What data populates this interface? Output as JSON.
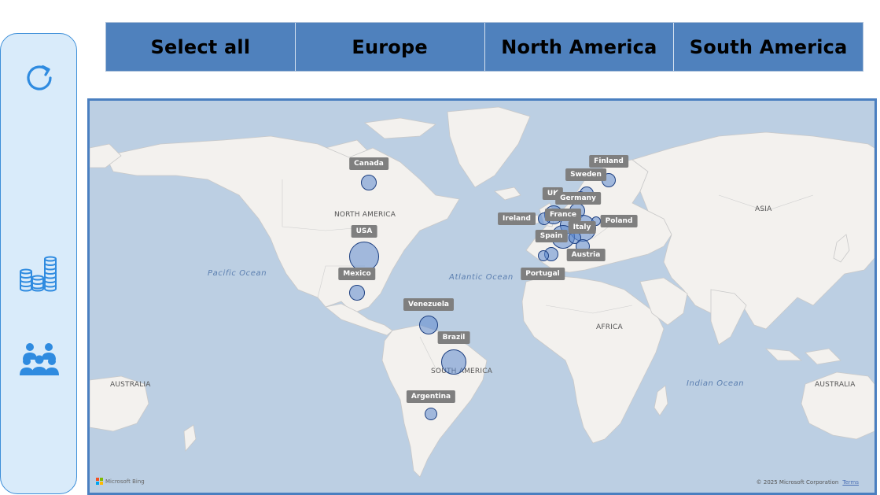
{
  "sidebar": {
    "icons": [
      {
        "name": "refresh-icon"
      },
      {
        "name": "coins-stack-icon"
      },
      {
        "name": "people-group-icon"
      }
    ],
    "accent": "#3d8fd9"
  },
  "slicer": {
    "buttons": [
      "Select all",
      "Europe",
      "North America",
      "South America"
    ],
    "color": "#4f81bd"
  },
  "map": {
    "regions": [
      "NORTH AMERICA",
      "SOUTH AMERICA",
      "AFRICA",
      "ASIA",
      "AUSTRALIA",
      "AUSTRALIA"
    ],
    "oceans": [
      "Pacific Ocean",
      "Atlantic Ocean",
      "Indian Ocean"
    ],
    "countries": [
      "Canada",
      "USA",
      "Mexico",
      "Venezuela",
      "Brazil",
      "Argentina",
      "Finland",
      "Sweden",
      "UK",
      "Germany",
      "Ireland",
      "France",
      "Poland",
      "Italy",
      "Spain",
      "Austria",
      "Portugal"
    ],
    "attribution": "Microsoft Bing",
    "copyright": "© 2025 Microsoft Corporation",
    "terms": "Terms"
  }
}
